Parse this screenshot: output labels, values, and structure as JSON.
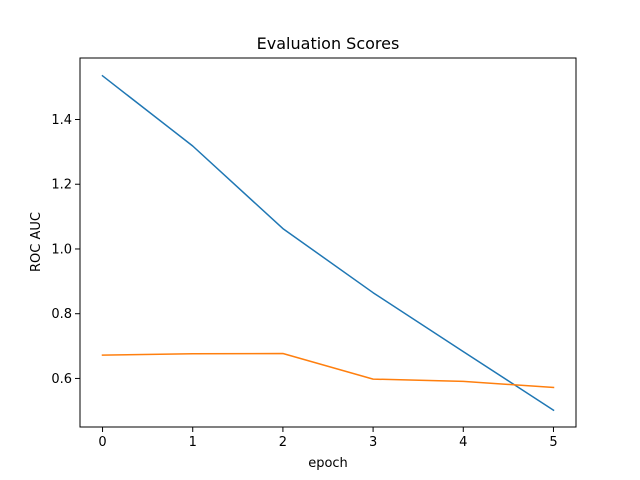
{
  "chart_data": {
    "type": "line",
    "title": "Evaluation Scores",
    "xlabel": "epoch",
    "ylabel": "ROC AUC",
    "x": [
      0,
      1,
      2,
      3,
      4,
      5
    ],
    "xlim": [
      -0.25,
      5.25
    ],
    "ylim": [
      0.45,
      1.59
    ],
    "xticks": [
      "0",
      "1",
      "2",
      "3",
      "4",
      "5"
    ],
    "yticks": [
      "0.6",
      "0.8",
      "1.0",
      "1.2",
      "1.4"
    ],
    "series": [
      {
        "color": "#1f77b4",
        "values": [
          1.535,
          1.318,
          1.063,
          0.865,
          0.683,
          0.502
        ]
      },
      {
        "color": "#ff7f0e",
        "values": [
          0.672,
          0.676,
          0.677,
          0.598,
          0.591,
          0.572
        ]
      }
    ],
    "grid": false,
    "legend": "none"
  }
}
